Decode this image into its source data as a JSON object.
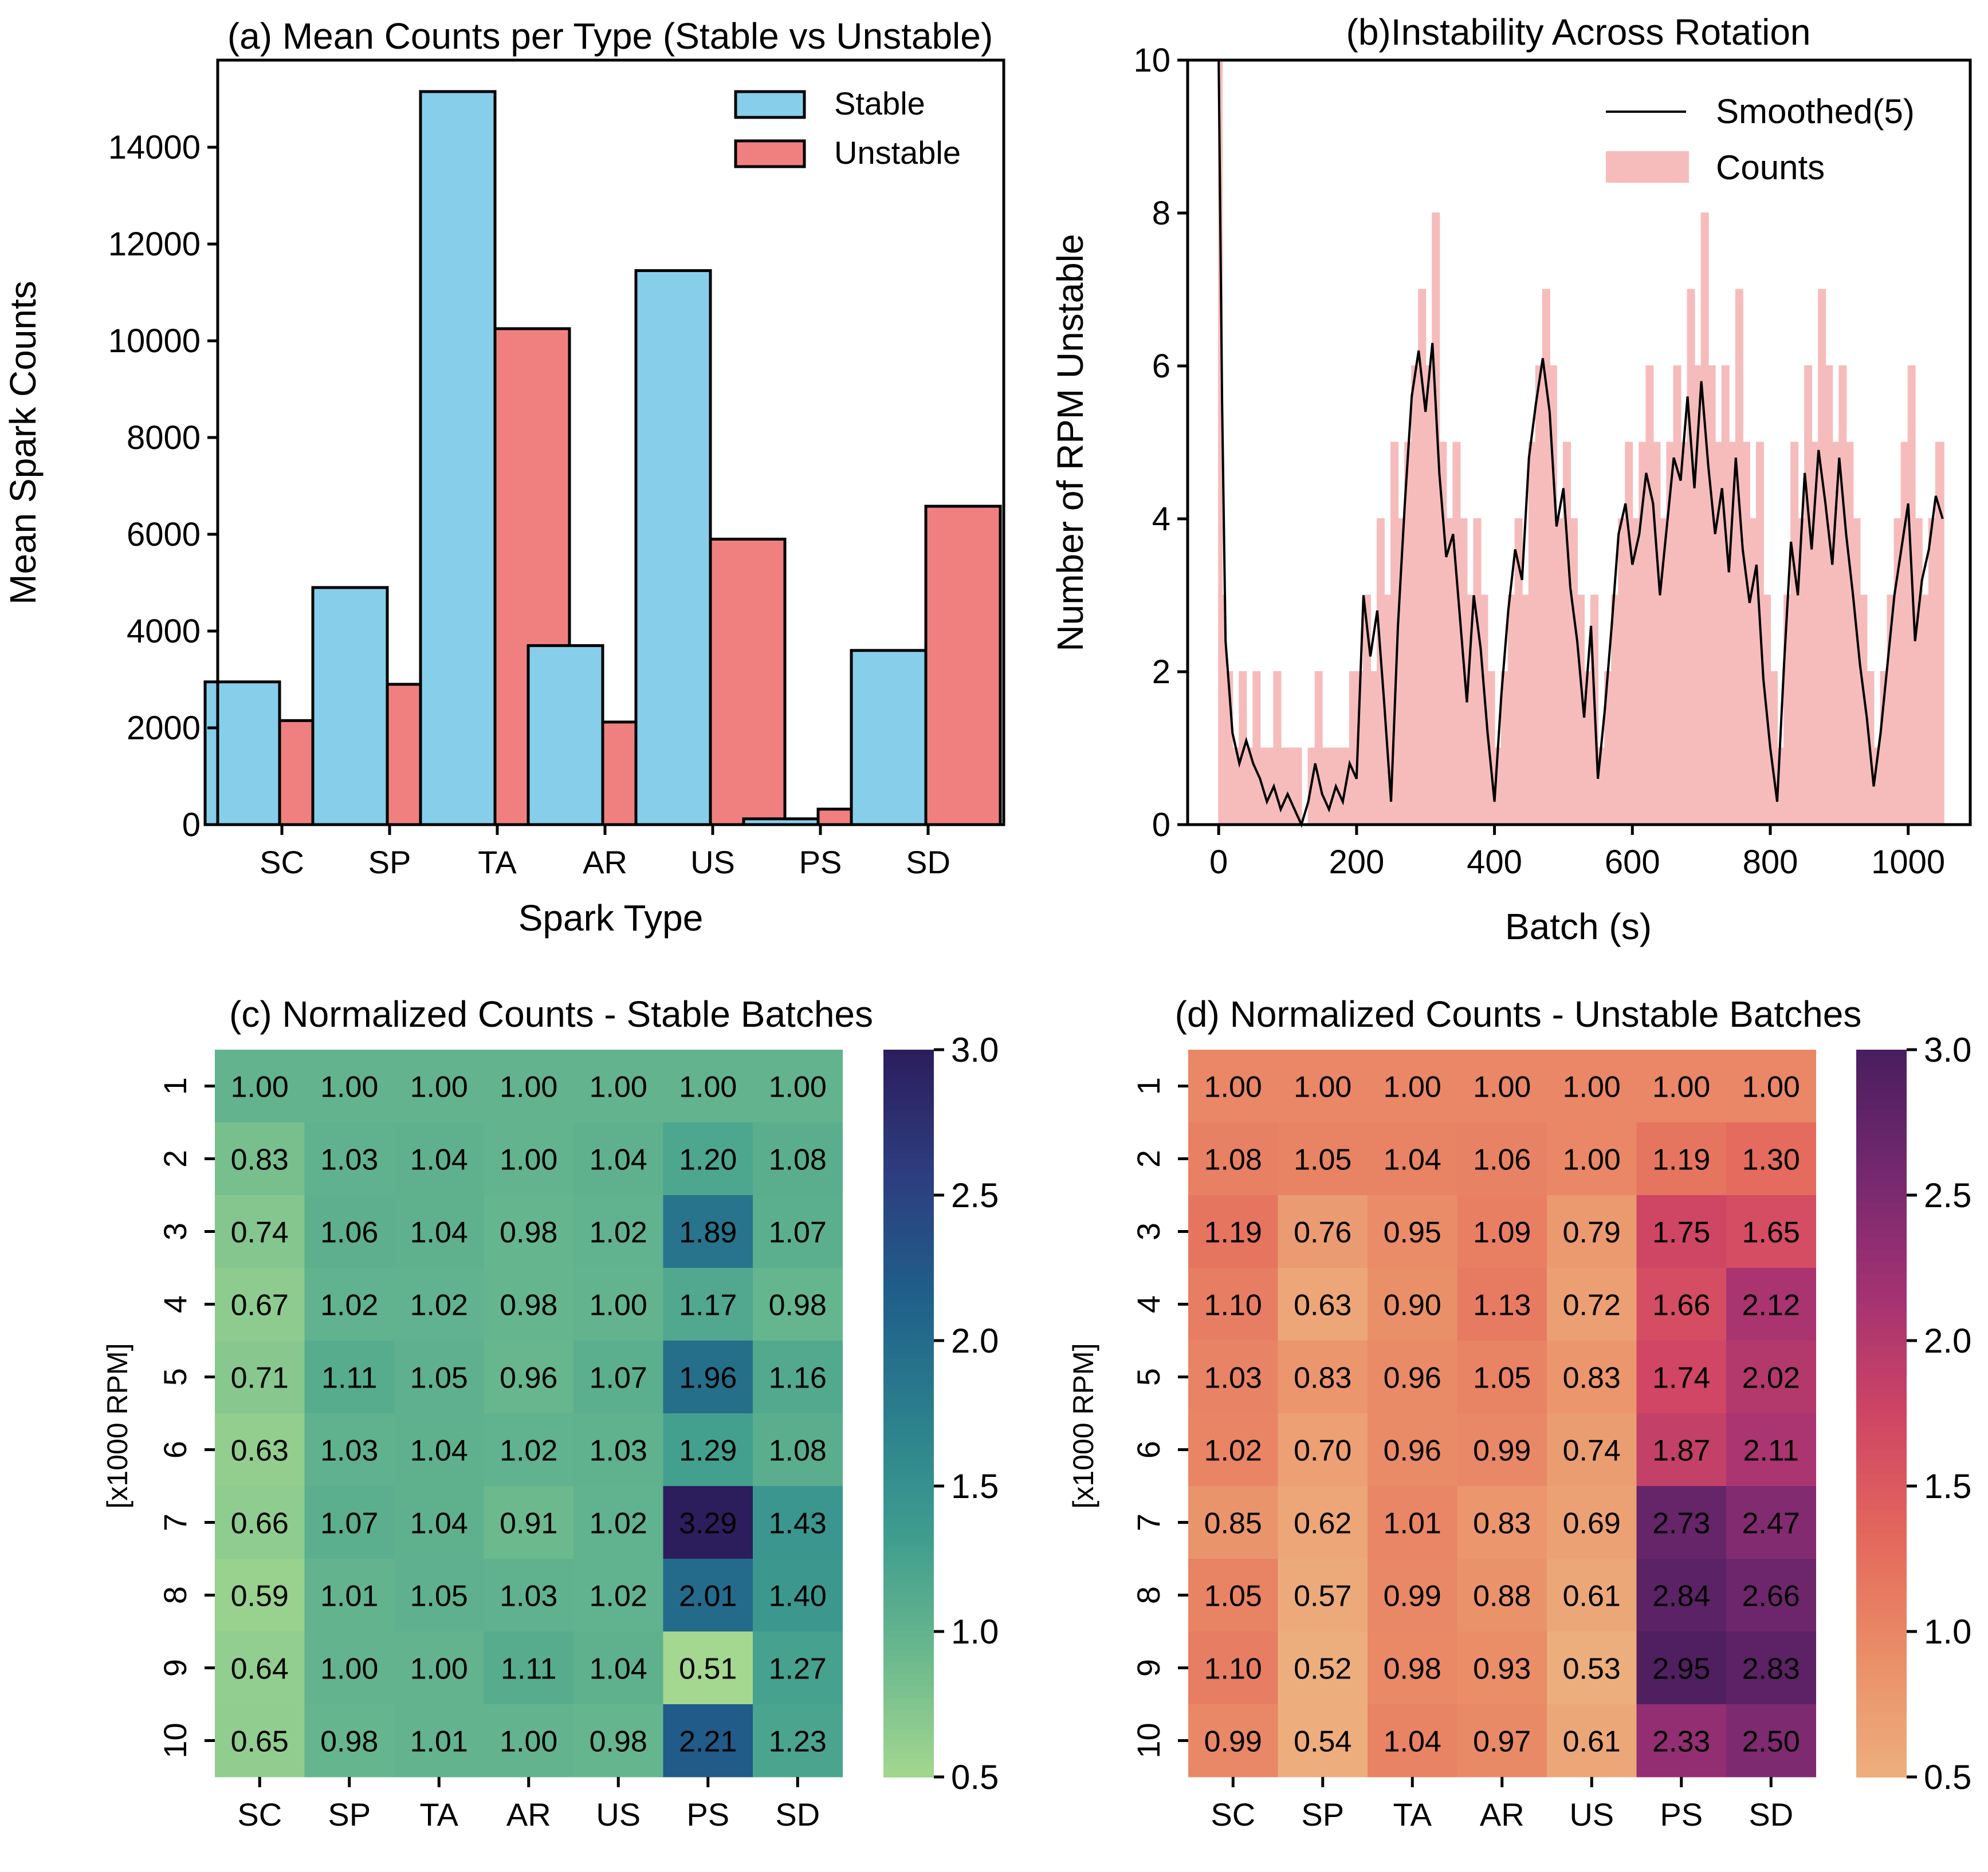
{
  "colors": {
    "stable": "#87ceeb",
    "unstable": "#f08080",
    "counts_fill": "#f6bcbc",
    "smoothed_line": "#000000"
  },
  "chart_data": [
    {
      "id": "a",
      "type": "bar",
      "title": "(a) Mean Counts per Type (Stable vs Unstable)",
      "xlabel": "Spark Type",
      "ylabel": "Mean Spark Counts",
      "categories": [
        "SC",
        "SP",
        "TA",
        "AR",
        "US",
        "PS",
        "SD"
      ],
      "series": [
        {
          "name": "Stable",
          "values": [
            2950,
            4900,
            15150,
            3700,
            11450,
            120,
            3600
          ]
        },
        {
          "name": "Unstable",
          "values": [
            2150,
            2900,
            10250,
            2120,
            5900,
            320,
            6580
          ]
        }
      ],
      "ylim": [
        0,
        15800
      ],
      "yticks": [
        0,
        2000,
        4000,
        6000,
        8000,
        10000,
        12000,
        14000
      ],
      "legend": "top-right"
    },
    {
      "id": "b",
      "type": "area",
      "title": "(b)Instability Across Rotation",
      "xlabel": "Batch (s)",
      "ylabel": "Number of RPM Unstable",
      "xlim": [
        -45,
        1090
      ],
      "ylim": [
        0,
        10
      ],
      "xticks": [
        0,
        200,
        400,
        600,
        800,
        1000
      ],
      "yticks": [
        0,
        2,
        4,
        6,
        8,
        10
      ],
      "legend": "top-right",
      "series": [
        {
          "name": "Counts",
          "x": [
            0,
            5,
            10,
            20,
            30,
            40,
            50,
            60,
            70,
            80,
            90,
            100,
            110,
            120,
            130,
            140,
            150,
            160,
            170,
            180,
            190,
            200,
            210,
            220,
            230,
            240,
            250,
            260,
            270,
            280,
            290,
            300,
            310,
            320,
            330,
            340,
            350,
            360,
            370,
            380,
            390,
            400,
            410,
            420,
            430,
            440,
            450,
            460,
            470,
            480,
            490,
            500,
            510,
            520,
            530,
            540,
            550,
            560,
            570,
            580,
            590,
            600,
            610,
            620,
            630,
            640,
            650,
            660,
            670,
            680,
            690,
            700,
            710,
            720,
            730,
            740,
            750,
            760,
            770,
            780,
            790,
            800,
            810,
            820,
            830,
            840,
            850,
            860,
            870,
            880,
            890,
            900,
            910,
            920,
            930,
            940,
            950,
            960,
            970,
            980,
            990,
            1000,
            1010,
            1020,
            1030,
            1040,
            1050
          ],
          "values": [
            10,
            3,
            2,
            1,
            2,
            1,
            2,
            1,
            1,
            2,
            1,
            1,
            1,
            0,
            1,
            2,
            1,
            1,
            1,
            1,
            2,
            2,
            3,
            2,
            4,
            3,
            5,
            4,
            5,
            6,
            7,
            6,
            8,
            5,
            4,
            5,
            4,
            3,
            4,
            3,
            2,
            1,
            2,
            3,
            4,
            3,
            5,
            6,
            7,
            6,
            4,
            5,
            4,
            3,
            2,
            3,
            1,
            2,
            3,
            4,
            5,
            4,
            5,
            6,
            5,
            4,
            5,
            6,
            5,
            7,
            6,
            8,
            6,
            5,
            6,
            5,
            7,
            5,
            4,
            5,
            3,
            2,
            1,
            3,
            5,
            4,
            6,
            5,
            7,
            6,
            5,
            6,
            5,
            4,
            3,
            2,
            1,
            2,
            3,
            4,
            5,
            6,
            4,
            3,
            4,
            5,
            5
          ]
        },
        {
          "name": "Smoothed(5)",
          "x": [
            0,
            5,
            10,
            20,
            30,
            40,
            50,
            60,
            70,
            80,
            90,
            100,
            110,
            120,
            130,
            140,
            150,
            160,
            170,
            180,
            190,
            200,
            210,
            220,
            230,
            240,
            250,
            260,
            270,
            280,
            290,
            300,
            310,
            320,
            330,
            340,
            350,
            360,
            370,
            380,
            390,
            400,
            410,
            420,
            430,
            440,
            450,
            460,
            470,
            480,
            490,
            500,
            510,
            520,
            530,
            540,
            550,
            560,
            570,
            580,
            590,
            600,
            610,
            620,
            630,
            640,
            650,
            660,
            670,
            680,
            690,
            700,
            710,
            720,
            730,
            740,
            750,
            760,
            770,
            780,
            790,
            800,
            810,
            820,
            830,
            840,
            850,
            860,
            870,
            880,
            890,
            900,
            910,
            920,
            930,
            940,
            950,
            960,
            970,
            980,
            990,
            1000,
            1010,
            1020,
            1030,
            1040,
            1050
          ],
          "values": [
            10,
            5.5,
            2.4,
            1.2,
            0.8,
            1.1,
            0.8,
            0.6,
            0.3,
            0.5,
            0.2,
            0.4,
            0.2,
            0.0,
            0.3,
            0.8,
            0.4,
            0.2,
            0.5,
            0.3,
            0.8,
            0.6,
            3.0,
            2.2,
            2.8,
            1.6,
            0.3,
            2.6,
            4.2,
            5.6,
            6.2,
            5.4,
            6.3,
            4.6,
            3.5,
            3.8,
            2.7,
            1.6,
            3.0,
            2.3,
            1.2,
            0.3,
            1.7,
            2.8,
            3.6,
            3.2,
            4.8,
            5.5,
            6.1,
            5.4,
            3.9,
            4.4,
            3.1,
            2.4,
            1.4,
            2.6,
            0.6,
            1.5,
            2.6,
            3.8,
            4.2,
            3.4,
            3.8,
            4.6,
            4.2,
            3.0,
            3.9,
            4.8,
            4.5,
            5.6,
            4.4,
            5.8,
            4.7,
            3.8,
            4.4,
            3.3,
            4.8,
            3.6,
            2.9,
            3.4,
            1.9,
            1.0,
            0.3,
            2.1,
            3.7,
            3.0,
            4.6,
            3.6,
            4.9,
            4.2,
            3.4,
            4.8,
            3.8,
            3.0,
            2.1,
            1.4,
            0.5,
            1.2,
            2.1,
            3.0,
            3.6,
            4.2,
            2.4,
            3.2,
            3.6,
            4.3,
            4.0
          ]
        }
      ]
    },
    {
      "id": "c",
      "type": "heatmap",
      "title": "(c) Normalized Counts - Stable Batches",
      "ylabel": "[x1000 RPM]",
      "columns": [
        "SC",
        "SP",
        "TA",
        "AR",
        "US",
        "PS",
        "SD"
      ],
      "rows": [
        "1",
        "2",
        "3",
        "4",
        "5",
        "6",
        "7",
        "8",
        "9",
        "10"
      ],
      "values": [
        [
          "1.00",
          "1.00",
          "1.00",
          "1.00",
          "1.00",
          "1.00",
          "1.00"
        ],
        [
          "0.83",
          "1.03",
          "1.04",
          "1.00",
          "1.04",
          "1.20",
          "1.08"
        ],
        [
          "0.74",
          "1.06",
          "1.04",
          "0.98",
          "1.02",
          "1.89",
          "1.07"
        ],
        [
          "0.67",
          "1.02",
          "1.02",
          "0.98",
          "1.00",
          "1.17",
          "0.98"
        ],
        [
          "0.71",
          "1.11",
          "1.05",
          "0.96",
          "1.07",
          "1.96",
          "1.16"
        ],
        [
          "0.63",
          "1.03",
          "1.04",
          "1.02",
          "1.03",
          "1.29",
          "1.08"
        ],
        [
          "0.66",
          "1.07",
          "1.04",
          "0.91",
          "1.02",
          "3.29",
          "1.43"
        ],
        [
          "0.59",
          "1.01",
          "1.05",
          "1.03",
          "1.02",
          "2.01",
          "1.40"
        ],
        [
          "0.64",
          "1.00",
          "1.00",
          "1.11",
          "1.04",
          "0.51",
          "1.27"
        ],
        [
          "0.65",
          "0.98",
          "1.01",
          "1.00",
          "0.98",
          "2.21",
          "1.23"
        ]
      ],
      "colorbar": {
        "min": 0.5,
        "max": 3.0,
        "ticks": [
          "3.0",
          "2.5",
          "2.0",
          "1.5",
          "1.0",
          "0.5"
        ],
        "colormap": "crest",
        "stops": [
          "#a5d88f",
          "#6cb98e",
          "#3f9d8e",
          "#2b7f8d",
          "#1f5f8a",
          "#2d3d7f",
          "#2c1e5d"
        ]
      }
    },
    {
      "id": "d",
      "type": "heatmap",
      "title": "(d) Normalized Counts - Unstable Batches",
      "ylabel": "[x1000 RPM]",
      "columns": [
        "SC",
        "SP",
        "TA",
        "AR",
        "US",
        "PS",
        "SD"
      ],
      "rows": [
        "1",
        "2",
        "3",
        "4",
        "5",
        "6",
        "7",
        "8",
        "9",
        "10"
      ],
      "values": [
        [
          "1.00",
          "1.00",
          "1.00",
          "1.00",
          "1.00",
          "1.00",
          "1.00"
        ],
        [
          "1.08",
          "1.05",
          "1.04",
          "1.06",
          "1.00",
          "1.19",
          "1.30"
        ],
        [
          "1.19",
          "0.76",
          "0.95",
          "1.09",
          "0.79",
          "1.75",
          "1.65"
        ],
        [
          "1.10",
          "0.63",
          "0.90",
          "1.13",
          "0.72",
          "1.66",
          "2.12"
        ],
        [
          "1.03",
          "0.83",
          "0.96",
          "1.05",
          "0.83",
          "1.74",
          "2.02"
        ],
        [
          "1.02",
          "0.70",
          "0.96",
          "0.99",
          "0.74",
          "1.87",
          "2.11"
        ],
        [
          "0.85",
          "0.62",
          "1.01",
          "0.83",
          "0.69",
          "2.73",
          "2.47"
        ],
        [
          "1.05",
          "0.57",
          "0.99",
          "0.88",
          "0.61",
          "2.84",
          "2.66"
        ],
        [
          "1.10",
          "0.52",
          "0.98",
          "0.93",
          "0.53",
          "2.95",
          "2.83"
        ],
        [
          "0.99",
          "0.54",
          "1.04",
          "0.97",
          "0.61",
          "2.33",
          "2.50"
        ]
      ],
      "colorbar": {
        "min": 0.5,
        "max": 3.0,
        "ticks": [
          "3.0",
          "2.5",
          "2.0",
          "1.5",
          "1.0",
          "0.5"
        ],
        "colormap": "flare",
        "stops": [
          "#edb07f",
          "#ea8f68",
          "#e4685c",
          "#cf4564",
          "#a43272",
          "#75286f",
          "#4a1e5e"
        ]
      }
    }
  ]
}
